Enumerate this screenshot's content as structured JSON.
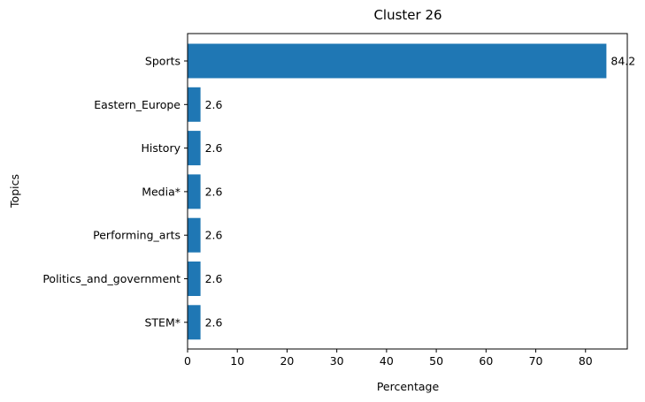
{
  "chart_data": {
    "type": "bar",
    "orientation": "horizontal",
    "title": "Cluster 26",
    "xlabel": "Percentage",
    "ylabel": "Topics",
    "categories": [
      "Sports",
      "Eastern_Europe",
      "History",
      "Media*",
      "Performing_arts",
      "Politics_and_government",
      "STEM*"
    ],
    "values": [
      84.2,
      2.6,
      2.6,
      2.6,
      2.6,
      2.6,
      2.6
    ],
    "value_labels": [
      "84.2",
      "2.6",
      "2.6",
      "2.6",
      "2.6",
      "2.6",
      "2.6"
    ],
    "xlim": [
      0,
      88.4
    ],
    "xticks": [
      0,
      10,
      20,
      30,
      40,
      50,
      60,
      70,
      80
    ],
    "xtick_labels": [
      "0",
      "10",
      "20",
      "30",
      "40",
      "50",
      "60",
      "70",
      "80"
    ],
    "bar_color": "#1f77b4",
    "grid": false,
    "legend": "none"
  }
}
